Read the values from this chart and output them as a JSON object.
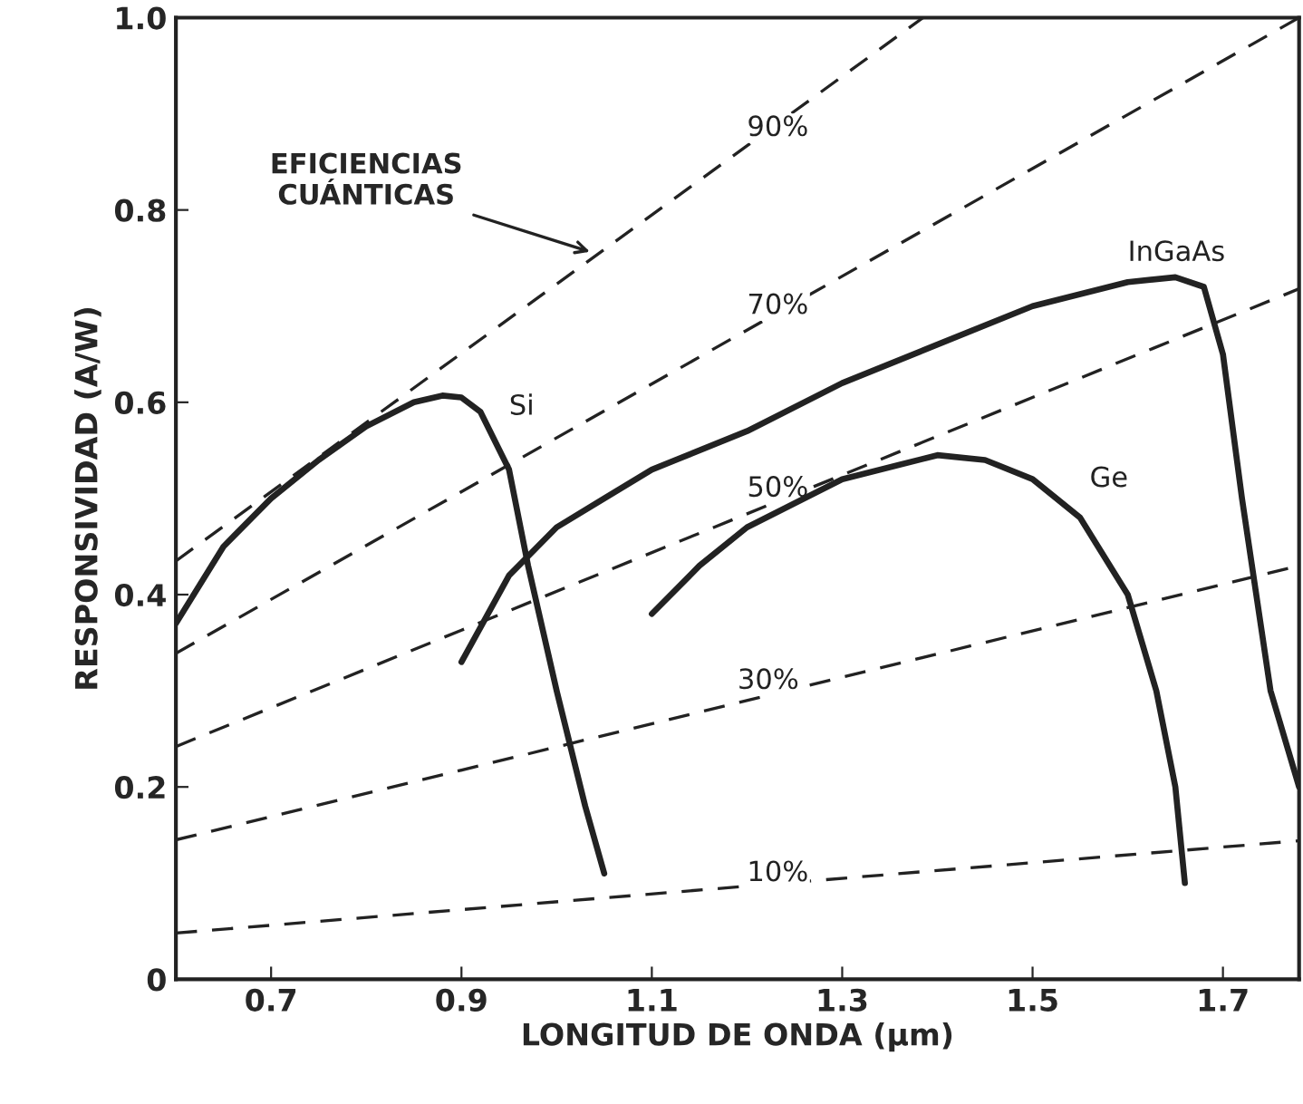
{
  "chart_data": {
    "type": "line",
    "xlabel": "LONGITUD DE ONDA (µm)",
    "ylabel": "RESPONSIVIDAD (A/W)",
    "xlim": [
      0.6,
      1.78
    ],
    "ylim": [
      0,
      1.0
    ],
    "xticks": [
      0.7,
      0.9,
      1.1,
      1.3,
      1.5,
      1.7
    ],
    "yticks": [
      {
        "value": 0,
        "label": "0"
      },
      0.2,
      0.4,
      0.6,
      0.8,
      {
        "value": 1.0,
        "label": "1.0"
      }
    ],
    "grid": false,
    "legend": false,
    "series": [
      {
        "name": "90%",
        "line_style": "dashed",
        "color": "#222222",
        "x": [
          0.6,
          1.385
        ],
        "values": [
          0.435,
          1.0
        ]
      },
      {
        "name": "70%",
        "line_style": "dashed",
        "color": "#222222",
        "x": [
          0.6,
          1.78
        ],
        "values": [
          0.339,
          1.0
        ]
      },
      {
        "name": "50%",
        "line_style": "dashed",
        "color": "#222222",
        "x": [
          0.6,
          1.78
        ],
        "values": [
          0.242,
          0.718
        ]
      },
      {
        "name": "30%",
        "line_style": "dashed",
        "color": "#222222",
        "x": [
          0.6,
          1.78
        ],
        "values": [
          0.145,
          0.43
        ]
      },
      {
        "name": "10%",
        "line_style": "dashed",
        "color": "#222222",
        "x": [
          0.6,
          1.78
        ],
        "values": [
          0.048,
          0.144
        ]
      },
      {
        "name": "Si",
        "line_style": "solid",
        "color": "#222222",
        "x": [
          0.6,
          0.65,
          0.7,
          0.75,
          0.8,
          0.85,
          0.88,
          0.9,
          0.92,
          0.95,
          0.97,
          1.0,
          1.03,
          1.05
        ],
        "values": [
          0.37,
          0.45,
          0.5,
          0.54,
          0.575,
          0.6,
          0.607,
          0.605,
          0.59,
          0.53,
          0.43,
          0.3,
          0.18,
          0.11
        ]
      },
      {
        "name": "InGaAs",
        "line_style": "solid",
        "color": "#222222",
        "x": [
          0.9,
          0.95,
          1.0,
          1.05,
          1.1,
          1.2,
          1.3,
          1.4,
          1.5,
          1.6,
          1.65,
          1.68,
          1.7,
          1.72,
          1.75,
          1.78
        ],
        "values": [
          0.33,
          0.42,
          0.47,
          0.5,
          0.53,
          0.57,
          0.62,
          0.66,
          0.7,
          0.725,
          0.73,
          0.72,
          0.65,
          0.5,
          0.3,
          0.2
        ]
      },
      {
        "name": "Ge",
        "line_style": "solid",
        "color": "#222222",
        "x": [
          1.1,
          1.15,
          1.2,
          1.3,
          1.4,
          1.45,
          1.5,
          1.55,
          1.6,
          1.63,
          1.65,
          1.66
        ],
        "values": [
          0.38,
          0.43,
          0.47,
          0.52,
          0.545,
          0.54,
          0.52,
          0.48,
          0.4,
          0.3,
          0.2,
          0.1
        ]
      }
    ],
    "annotations": [
      {
        "text": "EFICIENCIAS\nCUÁNTICAS",
        "x": 1.04,
        "y": 0.755
      }
    ]
  }
}
